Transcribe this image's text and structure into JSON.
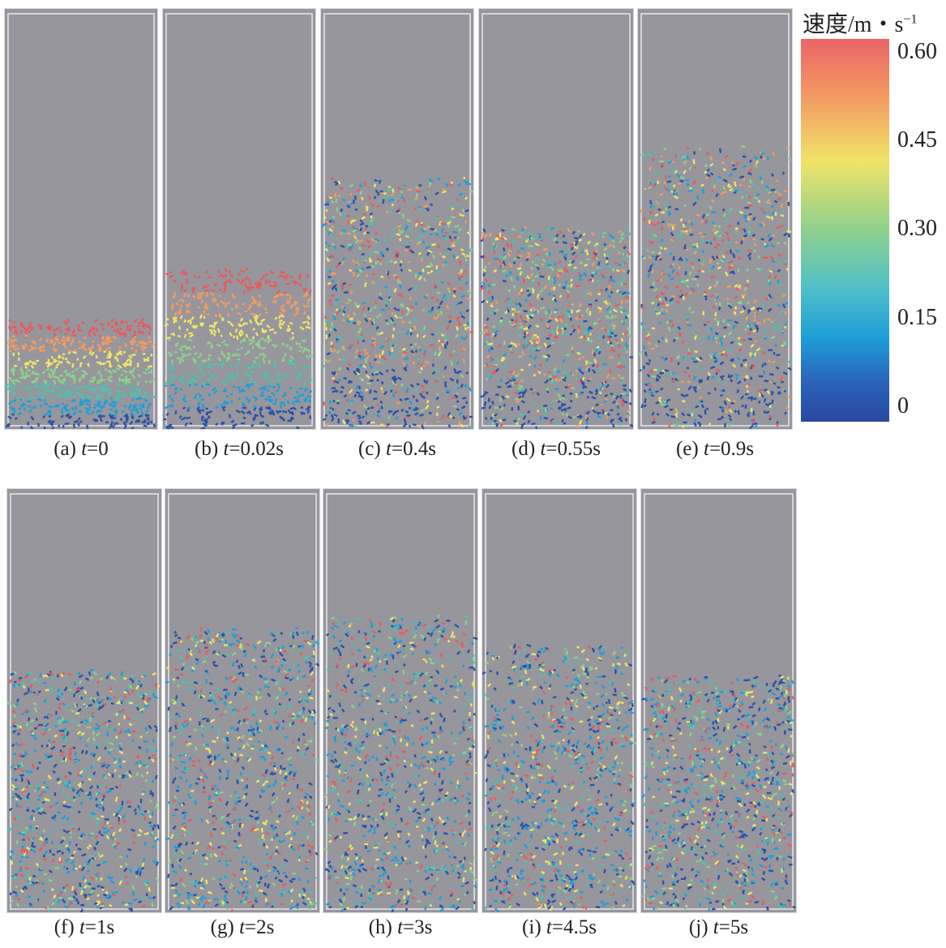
{
  "colorbar": {
    "title": "速度/m・s",
    "title_sup": "−1",
    "ticks": [
      "0.60",
      "0.45",
      "0.30",
      "0.15",
      "0"
    ],
    "colors": [
      "#ec6466",
      "#f39a62",
      "#f0e468",
      "#8ed08c",
      "#50c0c8",
      "#1e9ed8",
      "#2a48a0"
    ]
  },
  "panels": [
    {
      "label": "(a) ",
      "var": "t",
      "value": "=0"
    },
    {
      "label": "(b) ",
      "var": "t",
      "value": "=0.02s"
    },
    {
      "label": "(c) ",
      "var": "t",
      "value": "=0.4s"
    },
    {
      "label": "(d) ",
      "var": "t",
      "value": "=0.55s"
    },
    {
      "label": "(e) ",
      "var": "t",
      "value": "=0.9s"
    },
    {
      "label": "(f) ",
      "var": "t",
      "value": "=1s"
    },
    {
      "label": "(g) ",
      "var": "t",
      "value": "=2s"
    },
    {
      "label": "(h) ",
      "var": "t",
      "value": "=3s"
    },
    {
      "label": "(i) ",
      "var": "t",
      "value": "=4.5s"
    },
    {
      "label": "(j) ",
      "var": "t",
      "value": "=5s"
    }
  ]
}
